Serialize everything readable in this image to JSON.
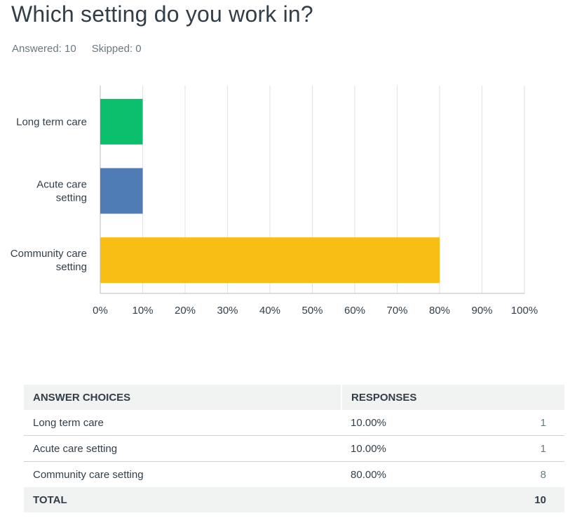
{
  "question": {
    "title": "Which setting do you work in?",
    "answered_label": "Answered: 10",
    "skipped_label": "Skipped: 0"
  },
  "chart_data": {
    "type": "bar",
    "orientation": "horizontal",
    "categories": [
      "Long term care",
      "Acute care setting",
      "Community care setting"
    ],
    "category_label_lines": [
      [
        "Long term care"
      ],
      [
        "Acute care",
        "setting"
      ],
      [
        "Community care",
        "setting"
      ]
    ],
    "values": [
      10,
      10,
      80
    ],
    "colors": [
      "#0bbf6c",
      "#507cb6",
      "#f9be14"
    ],
    "xlim": [
      0,
      100
    ],
    "x_ticks": [
      "0%",
      "10%",
      "20%",
      "30%",
      "40%",
      "50%",
      "60%",
      "70%",
      "80%",
      "90%",
      "100%"
    ],
    "grid": true,
    "title": "",
    "xlabel": "",
    "ylabel": ""
  },
  "table": {
    "headers": {
      "choices": "ANSWER CHOICES",
      "responses": "RESPONSES"
    },
    "rows": [
      {
        "choice": "Long term care",
        "percent": "10.00%",
        "count": "1"
      },
      {
        "choice": "Acute care setting",
        "percent": "10.00%",
        "count": "1"
      },
      {
        "choice": "Community care setting",
        "percent": "80.00%",
        "count": "8"
      }
    ],
    "total": {
      "label": "TOTAL",
      "count": "10"
    }
  }
}
